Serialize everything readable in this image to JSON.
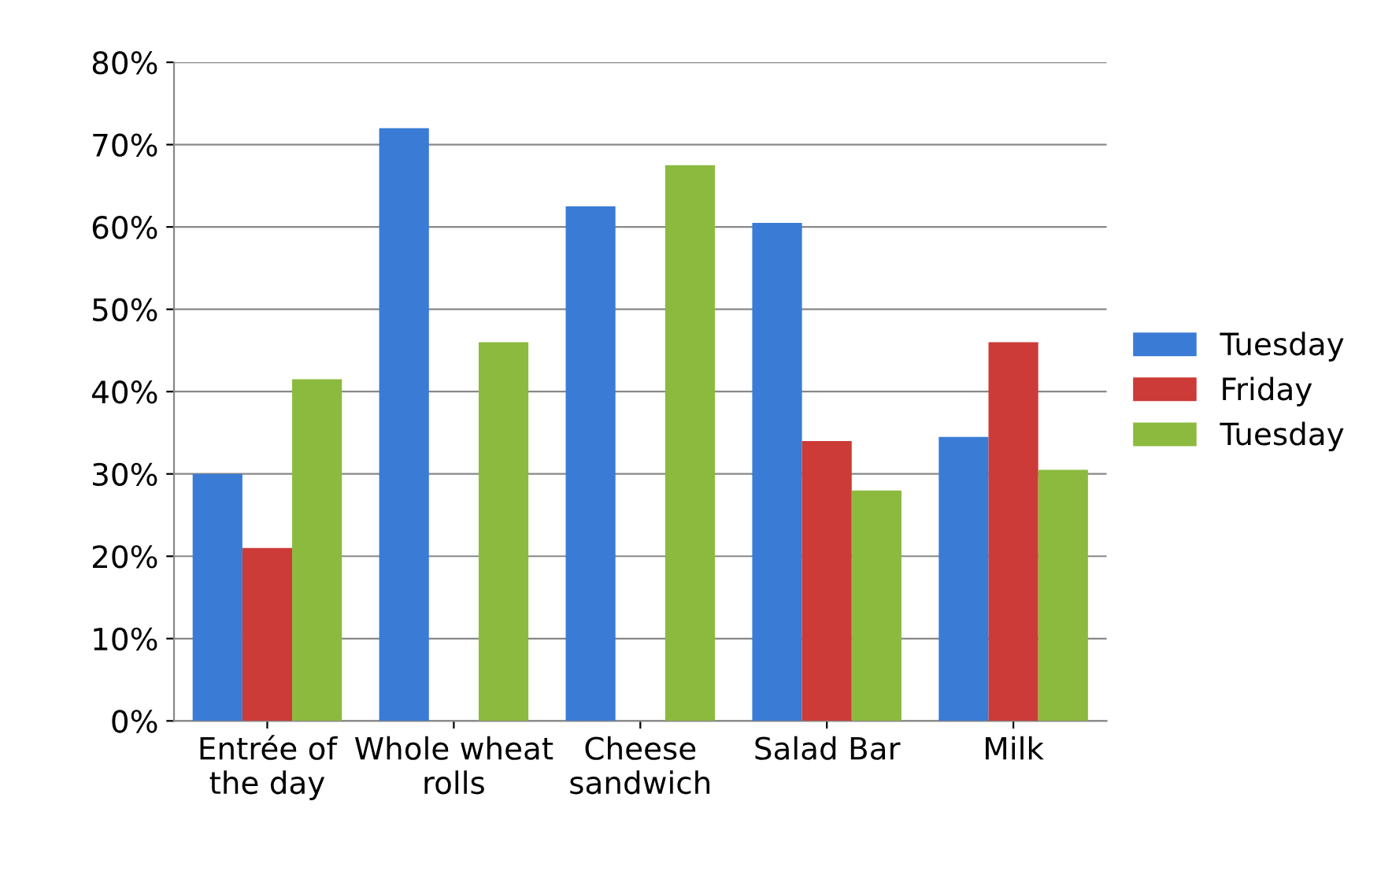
{
  "chart_data": {
    "type": "bar",
    "categories": [
      "Entrée of the day",
      "Whole wheat rolls",
      "Cheese sandwich",
      "Salad Bar",
      "Milk"
    ],
    "series": [
      {
        "name": "Tuesday",
        "color": "#3a7bd5",
        "values": [
          30,
          72,
          62.5,
          60.5,
          34.5
        ]
      },
      {
        "name": "Friday",
        "color": "#cc3b37",
        "values": [
          21,
          null,
          null,
          34,
          46
        ]
      },
      {
        "name": "Tuesday",
        "color": "#8cba3e",
        "values": [
          41.5,
          46,
          67.5,
          28,
          30.5
        ]
      }
    ],
    "ylim": [
      0,
      80
    ],
    "yticks": [
      {
        "value": 0,
        "label": "0%"
      },
      {
        "value": 10,
        "label": "10%"
      },
      {
        "value": 20,
        "label": "20%"
      },
      {
        "value": 30,
        "label": "30%"
      },
      {
        "value": 40,
        "label": "40%"
      },
      {
        "value": 50,
        "label": "50%"
      },
      {
        "value": 60,
        "label": "60%"
      },
      {
        "value": 70,
        "label": "70%"
      },
      {
        "value": 80,
        "label": "80%"
      }
    ],
    "grid": "y",
    "legend": "right"
  }
}
